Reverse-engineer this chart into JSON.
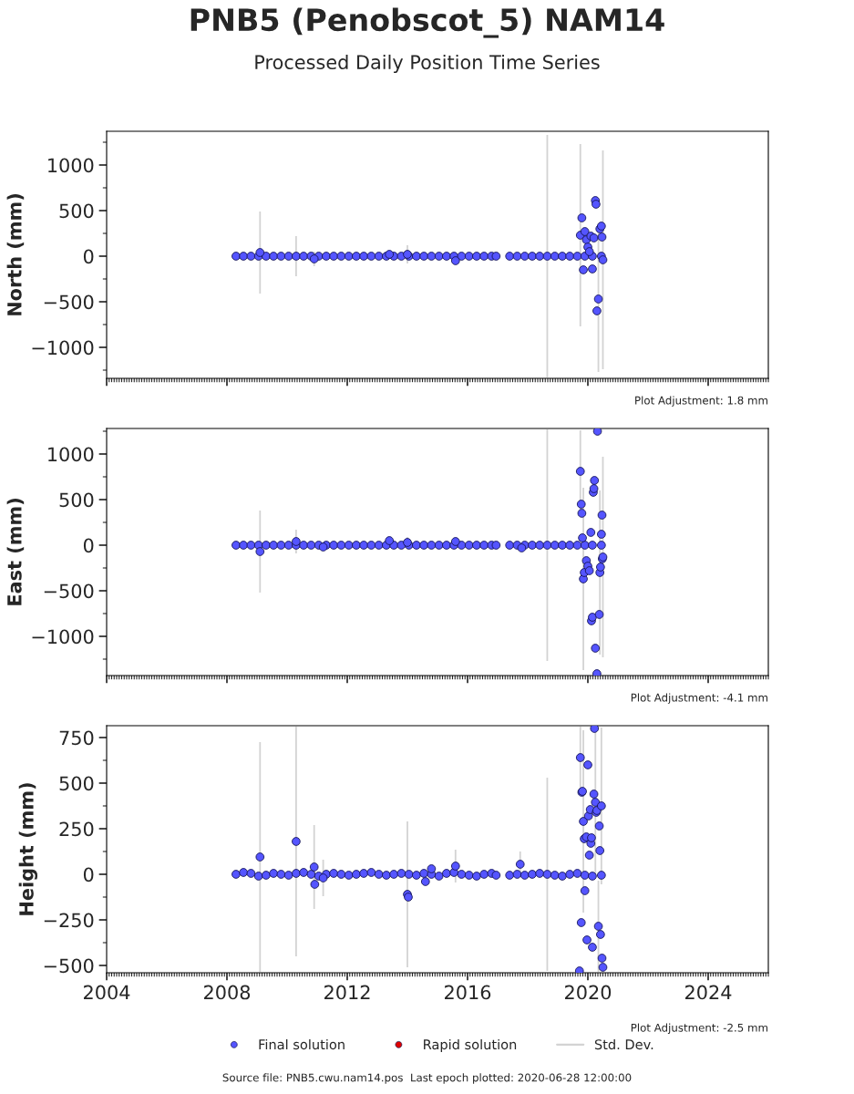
{
  "chart_data": [
    {
      "type": "scatter",
      "title": "PNB5 (Penobscot_5) NAM14",
      "subtitle": "Processed Daily Position Time Series",
      "ylabel": "North (mm)",
      "xlim": [
        2004,
        2026
      ],
      "xticks": [
        2004,
        2008,
        2012,
        2016,
        2020,
        2024
      ],
      "ylim": [
        -1340,
        1370
      ],
      "yticks": [
        {
          "value": -1000,
          "label": "−1000"
        },
        {
          "value": -500,
          "label": "−500"
        },
        0,
        500,
        1000
      ],
      "tick_labels": "y",
      "marker": "circle",
      "annotations": [
        "Plot Adjustment: 1.8 mm"
      ],
      "series": [
        {
          "color": "#5555ff",
          "x": [
            2008.3,
            2008.55,
            2008.8,
            2009.05,
            2009.3,
            2009.55,
            2009.8,
            2010.05,
            2010.3,
            2010.55,
            2010.8,
            2011.05,
            2011.3,
            2011.55,
            2011.8,
            2012.05,
            2012.3,
            2012.55,
            2012.8,
            2013.05,
            2013.3,
            2013.55,
            2013.8,
            2014.05,
            2014.3,
            2014.55,
            2014.8,
            2015.05,
            2015.3,
            2015.55,
            2015.8,
            2016.05,
            2016.3,
            2016.55,
            2016.8,
            2016.95,
            2017.4,
            2017.65,
            2017.9,
            2018.15,
            2018.4,
            2018.65,
            2018.9,
            2019.15,
            2019.4,
            2019.65,
            2019.9,
            2020.15,
            2020.45,
            2009.1,
            2010.9,
            2013.4,
            2014.0,
            2015.6,
            2019.75,
            2019.8,
            2019.85,
            2019.9,
            2019.95,
            2020.0,
            2020.05,
            2020.1,
            2020.15,
            2020.2,
            2020.25,
            2020.27,
            2020.3,
            2020.35,
            2020.4,
            2020.45,
            2020.47,
            2020.5
          ],
          "values": [
            0,
            0,
            0,
            0,
            0,
            0,
            0,
            0,
            0,
            0,
            0,
            0,
            0,
            0,
            0,
            0,
            0,
            0,
            0,
            0,
            0,
            0,
            0,
            0,
            0,
            0,
            0,
            0,
            0,
            0,
            0,
            0,
            0,
            0,
            0,
            0,
            0,
            0,
            0,
            0,
            0,
            0,
            0,
            0,
            0,
            0,
            0,
            0,
            0,
            40,
            -30,
            20,
            20,
            -50,
            230,
            420,
            -150,
            270,
            180,
            100,
            50,
            220,
            -140,
            200,
            610,
            570,
            -600,
            -470,
            300,
            330,
            210,
            -40
          ],
          "errors": [
            null,
            null,
            null,
            null,
            null,
            null,
            null,
            null,
            220,
            null,
            null,
            null,
            null,
            null,
            null,
            null,
            null,
            null,
            null,
            null,
            null,
            null,
            null,
            null,
            null,
            null,
            null,
            null,
            null,
            null,
            null,
            null,
            null,
            null,
            null,
            null,
            null,
            null,
            null,
            null,
            null,
            1330,
            null,
            null,
            null,
            null,
            null,
            null,
            null,
            450,
            80,
            null,
            100,
            null,
            1000,
            null,
            null,
            null,
            null,
            null,
            null,
            null,
            null,
            null,
            null,
            null,
            null,
            800,
            null,
            null,
            null,
            1200
          ]
        }
      ]
    },
    {
      "type": "scatter",
      "ylabel": "East (mm)",
      "xlim": [
        2004,
        2026
      ],
      "xticks": [
        2004,
        2008,
        2012,
        2016,
        2020,
        2024
      ],
      "ylim": [
        -1430,
        1280
      ],
      "yticks": [
        {
          "value": -1000,
          "label": "−1000"
        },
        {
          "value": -500,
          "label": "−500"
        },
        0,
        500,
        1000
      ],
      "tick_labels": "y",
      "marker": "circle",
      "annotations": [
        "Plot Adjustment: -4.1 mm"
      ],
      "series": [
        {
          "color": "#5555ff",
          "x": [
            2008.3,
            2008.55,
            2008.8,
            2009.05,
            2009.3,
            2009.55,
            2009.8,
            2010.05,
            2010.3,
            2010.55,
            2010.8,
            2011.05,
            2011.3,
            2011.55,
            2011.8,
            2012.05,
            2012.3,
            2012.55,
            2012.8,
            2013.05,
            2013.3,
            2013.55,
            2013.8,
            2014.05,
            2014.3,
            2014.55,
            2014.8,
            2015.05,
            2015.3,
            2015.55,
            2015.8,
            2016.05,
            2016.3,
            2016.55,
            2016.8,
            2016.95,
            2017.4,
            2017.65,
            2017.9,
            2018.15,
            2018.4,
            2018.65,
            2018.9,
            2019.15,
            2019.4,
            2019.65,
            2019.9,
            2020.15,
            2020.45,
            2009.1,
            2010.3,
            2011.2,
            2013.4,
            2014.0,
            2015.6,
            2017.8,
            2019.75,
            2019.78,
            2019.8,
            2019.82,
            2019.85,
            2019.88,
            2019.95,
            2020.0,
            2020.05,
            2020.1,
            2020.12,
            2020.15,
            2020.18,
            2020.2,
            2020.22,
            2020.25,
            2020.3,
            2020.32,
            2020.38,
            2020.4,
            2020.42,
            2020.45,
            2020.47,
            2020.48,
            2020.5
          ],
          "values": [
            0,
            0,
            0,
            0,
            0,
            0,
            0,
            0,
            0,
            0,
            0,
            0,
            0,
            0,
            0,
            0,
            0,
            0,
            0,
            0,
            0,
            0,
            0,
            0,
            0,
            0,
            0,
            0,
            0,
            0,
            0,
            0,
            0,
            0,
            0,
            0,
            0,
            0,
            0,
            0,
            0,
            0,
            0,
            0,
            0,
            0,
            0,
            0,
            0,
            -70,
            40,
            -20,
            50,
            30,
            40,
            -30,
            810,
            450,
            350,
            80,
            -370,
            -300,
            -170,
            -230,
            -280,
            140,
            -830,
            -790,
            580,
            620,
            710,
            -1130,
            -1410,
            1250,
            -760,
            -300,
            -240,
            120,
            330,
            -150,
            -130
          ],
          "errors": [
            null,
            null,
            null,
            null,
            null,
            null,
            null,
            null,
            null,
            null,
            null,
            null,
            null,
            null,
            null,
            null,
            null,
            null,
            null,
            null,
            null,
            null,
            null,
            null,
            null,
            null,
            null,
            null,
            null,
            null,
            null,
            null,
            null,
            null,
            null,
            null,
            null,
            null,
            null,
            null,
            null,
            1270,
            null,
            null,
            null,
            null,
            null,
            null,
            null,
            450,
            130,
            null,
            null,
            60,
            null,
            null,
            450,
            null,
            null,
            null,
            1000,
            null,
            null,
            null,
            null,
            null,
            null,
            null,
            null,
            null,
            null,
            null,
            null,
            null,
            null,
            900,
            null,
            null,
            null,
            null,
            1100
          ]
        }
      ]
    },
    {
      "type": "scatter",
      "ylabel": "Height (mm)",
      "xlim": [
        2004,
        2026
      ],
      "xticks": [
        2004,
        2008,
        2012,
        2016,
        2020,
        2024
      ],
      "ylim": [
        -540,
        815
      ],
      "yticks": [
        {
          "value": -500,
          "label": "−500"
        },
        {
          "value": -250,
          "label": "−250"
        },
        0,
        250,
        500,
        750
      ],
      "marker": "circle",
      "legend": "bottom",
      "annotations": [
        "Plot Adjustment: -2.5 mm",
        "Source file: PNB5.cwu.nam14.pos  Last epoch plotted: 2020-06-28 12:00:00"
      ],
      "series": [
        {
          "name": "Final solution",
          "color": "#5555ff",
          "x": [
            2008.3,
            2008.55,
            2008.8,
            2009.05,
            2009.3,
            2009.55,
            2009.8,
            2010.05,
            2010.3,
            2010.55,
            2010.8,
            2011.05,
            2011.3,
            2011.55,
            2011.8,
            2012.05,
            2012.3,
            2012.55,
            2012.8,
            2013.05,
            2013.3,
            2013.55,
            2013.8,
            2014.05,
            2014.3,
            2014.55,
            2014.8,
            2015.05,
            2015.3,
            2015.55,
            2015.8,
            2016.05,
            2016.3,
            2016.55,
            2016.8,
            2016.95,
            2017.4,
            2017.65,
            2017.9,
            2018.15,
            2018.4,
            2018.65,
            2018.9,
            2019.15,
            2019.4,
            2019.65,
            2019.9,
            2020.15,
            2020.45,
            2009.1,
            2010.3,
            2010.9,
            2010.92,
            2011.2,
            2014.0,
            2014.03,
            2014.6,
            2014.8,
            2015.6,
            2017.75,
            2019.72,
            2019.75,
            2019.78,
            2019.8,
            2019.82,
            2019.85,
            2019.88,
            2019.9,
            2019.95,
            2019.97,
            2020.0,
            2020.02,
            2020.05,
            2020.08,
            2020.1,
            2020.12,
            2020.15,
            2020.2,
            2020.22,
            2020.25,
            2020.28,
            2020.3,
            2020.35,
            2020.38,
            2020.4,
            2020.42,
            2020.45,
            2020.47,
            2020.5
          ],
          "values": [
            0,
            10,
            5,
            -10,
            -5,
            5,
            0,
            -5,
            5,
            10,
            0,
            -10,
            0,
            5,
            0,
            -5,
            0,
            5,
            10,
            0,
            -5,
            0,
            5,
            0,
            -5,
            5,
            0,
            -10,
            5,
            10,
            0,
            -5,
            -10,
            0,
            5,
            -5,
            -5,
            0,
            -5,
            0,
            5,
            0,
            -5,
            -10,
            0,
            5,
            -5,
            -10,
            -5,
            95,
            180,
            40,
            -55,
            -20,
            -110,
            -125,
            -40,
            30,
            45,
            55,
            -530,
            640,
            -265,
            450,
            455,
            290,
            195,
            -90,
            205,
            -360,
            600,
            320,
            105,
            355,
            170,
            200,
            -400,
            440,
            800,
            395,
            340,
            350,
            -285,
            265,
            130,
            -330,
            375,
            -460,
            -510
          ],
          "errors": [
            null,
            null,
            null,
            null,
            null,
            null,
            null,
            null,
            null,
            null,
            null,
            null,
            null,
            null,
            null,
            null,
            null,
            null,
            null,
            null,
            null,
            null,
            null,
            null,
            null,
            null,
            null,
            null,
            null,
            null,
            null,
            null,
            null,
            null,
            null,
            null,
            null,
            null,
            null,
            null,
            null,
            530,
            null,
            null,
            null,
            null,
            null,
            null,
            null,
            630,
            630,
            230,
            null,
            100,
            400,
            null,
            null,
            null,
            90,
            70,
            null,
            170,
            null,
            null,
            null,
            500,
            null,
            null,
            null,
            null,
            null,
            null,
            null,
            null,
            null,
            null,
            null,
            null,
            null,
            410,
            null,
            null,
            250,
            null,
            null,
            null,
            430,
            null,
            null
          ]
        },
        {
          "name": "Rapid solution",
          "color": "#e00000"
        },
        {
          "name": "Std. Dev.",
          "type": "line",
          "color": "#d3d3d3"
        }
      ]
    }
  ]
}
